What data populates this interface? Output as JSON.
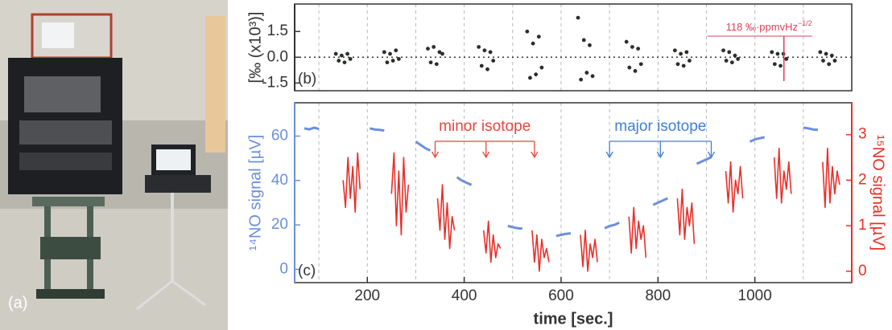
{
  "panel_a": {
    "label": "(a)"
  },
  "chart_data": [
    {
      "type": "scatter",
      "panel_label": "(b)",
      "ylabel": "[‰ (x10³)]",
      "xlim": [
        50,
        1200
      ],
      "ylim": [
        -1.95,
        3.1
      ],
      "yticks": [
        1.5,
        {
          "value": 0,
          "label": "0.0"
        },
        -1.5
      ],
      "x_grid": [
        100,
        200,
        300,
        400,
        500,
        600,
        700,
        800,
        900,
        1000,
        1100
      ],
      "zero_line": true,
      "annotation": {
        "text": "118 ‰·ppmvHz",
        "superscript": "−1/2",
        "x": 1060,
        "color": "#e0405a"
      },
      "x": [
        135,
        141,
        147,
        153,
        159,
        165,
        235,
        241,
        247,
        253,
        259,
        265,
        325,
        331,
        337,
        343,
        349,
        355,
        430,
        436,
        442,
        448,
        454,
        460,
        530,
        536,
        542,
        548,
        554,
        560,
        635,
        641,
        647,
        653,
        659,
        665,
        735,
        741,
        747,
        753,
        759,
        765,
        835,
        841,
        847,
        853,
        859,
        865,
        935,
        941,
        947,
        953,
        959,
        965,
        1035,
        1041,
        1047,
        1053,
        1059,
        1065,
        1135,
        1141,
        1147,
        1153,
        1159,
        1165
      ],
      "series": [
        {
          "color": "#2b2f2a",
          "values": [
            0.2,
            -0.2,
            0.1,
            -0.3,
            0.2,
            -0.1,
            0.3,
            -0.3,
            0.2,
            -0.2,
            0.4,
            -0.1,
            0.5,
            -0.3,
            0.6,
            -0.4,
            0.3,
            0.2,
            0.6,
            -0.5,
            0.4,
            -0.7,
            0.3,
            -0.2,
            1.5,
            -1.2,
            0.8,
            -1.0,
            1.2,
            -0.6,
            2.3,
            -1.3,
            1.0,
            -0.9,
            0.7,
            -1.1,
            0.9,
            -0.6,
            0.6,
            -0.8,
            0.5,
            -0.4,
            0.4,
            -0.4,
            0.2,
            -0.5,
            0.3,
            -0.2,
            0.4,
            -0.2,
            0.3,
            -0.3,
            0.1,
            -0.1,
            0.3,
            -0.4,
            0.2,
            -0.5,
            0.2,
            -0.1,
            0.3,
            -0.2,
            0.2,
            -0.4,
            0.1,
            -0.2
          ]
        }
      ]
    },
    {
      "type": "line",
      "panel_label": "(c)",
      "xlabel": "time [sec.]",
      "ylabel": "¹⁴NO signal [µV]",
      "y2label": "¹⁵NO signal [µV]",
      "xlim": [
        50,
        1200
      ],
      "ylim": [
        -6,
        75
      ],
      "y2lim": [
        -0.25,
        3.7
      ],
      "xticks": [
        200,
        400,
        600,
        800,
        1000
      ],
      "yticks": [
        0,
        20,
        40,
        60
      ],
      "y2ticks": [
        0,
        1,
        2,
        3
      ],
      "x_grid": [
        100,
        200,
        300,
        400,
        500,
        600,
        700,
        800,
        900,
        1000,
        1100
      ],
      "annotations": [
        {
          "text": "minor isotope",
          "color": "#e8453c",
          "x": [
            340,
            445,
            545
          ]
        },
        {
          "text": "major isotope",
          "color": "#3f7fd6",
          "x": [
            700,
            805,
            910
          ]
        }
      ],
      "x": [
        70,
        80,
        90,
        100,
        150,
        155,
        160,
        165,
        170,
        175,
        180,
        185,
        205,
        215,
        225,
        235,
        250,
        255,
        260,
        265,
        270,
        275,
        280,
        285,
        300,
        310,
        320,
        330,
        345,
        350,
        355,
        360,
        365,
        370,
        375,
        380,
        385,
        395,
        405,
        415,
        440,
        445,
        450,
        455,
        460,
        465,
        470,
        475,
        490,
        500,
        510,
        520,
        540,
        545,
        550,
        555,
        560,
        565,
        570,
        575,
        590,
        600,
        610,
        620,
        640,
        645,
        650,
        655,
        660,
        665,
        670,
        675,
        690,
        700,
        710,
        720,
        740,
        745,
        750,
        755,
        760,
        765,
        770,
        775,
        790,
        800,
        810,
        820,
        840,
        845,
        850,
        855,
        860,
        865,
        870,
        875,
        880,
        890,
        900,
        910,
        940,
        945,
        950,
        955,
        960,
        965,
        970,
        975,
        990,
        1000,
        1010,
        1020,
        1040,
        1045,
        1050,
        1055,
        1060,
        1065,
        1070,
        1075,
        1100,
        1110,
        1120,
        1130,
        1140,
        1145,
        1150,
        1155,
        1160,
        1165,
        1170,
        1175
      ],
      "series": [
        {
          "color": "#6b8fdc",
          "values": [
            63.5,
            63,
            63.8,
            63.2,
            null,
            null,
            null,
            null,
            null,
            null,
            null,
            null,
            63.5,
            63,
            62.8,
            62.5,
            null,
            null,
            null,
            null,
            null,
            null,
            null,
            null,
            57.5,
            56,
            54.5,
            53.5,
            null,
            null,
            null,
            null,
            null,
            null,
            null,
            null,
            41.5,
            40,
            39,
            38,
            null,
            null,
            null,
            null,
            null,
            null,
            null,
            null,
            19.5,
            19,
            18.5,
            18.3,
            null,
            null,
            null,
            null,
            null,
            null,
            null,
            null,
            15,
            15.5,
            16,
            16.2,
            null,
            null,
            null,
            null,
            null,
            null,
            null,
            null,
            18.5,
            19.5,
            20,
            21,
            null,
            null,
            null,
            null,
            null,
            null,
            null,
            null,
            29,
            30,
            31,
            32,
            null,
            null,
            null,
            null,
            null,
            null,
            null,
            null,
            47.5,
            48.5,
            49.5,
            50.5,
            null,
            null,
            null,
            null,
            null,
            null,
            null,
            null,
            57.5,
            58.5,
            59,
            59.5,
            null,
            null,
            null,
            null,
            null,
            null,
            null,
            null,
            63.8,
            63.5,
            63,
            62.8,
            null,
            null,
            null,
            null,
            null,
            null,
            null,
            null
          ]
        },
        {
          "color": "#e8302a",
          "axis": "y2",
          "values": [
            null,
            null,
            null,
            null,
            2.0,
            1.4,
            2.5,
            1.6,
            2.3,
            1.3,
            2.6,
            1.8,
            null,
            null,
            null,
            null,
            1.7,
            2.6,
            1.0,
            2.2,
            0.8,
            2.5,
            1.3,
            1.9,
            null,
            null,
            null,
            null,
            1.6,
            0.9,
            1.9,
            0.7,
            1.5,
            0.5,
            1.2,
            0.9,
            null,
            null,
            null,
            null,
            0.9,
            0.4,
            1.1,
            0.2,
            0.8,
            0.3,
            0.6,
            0.5,
            null,
            null,
            null,
            null,
            0.9,
            0.2,
            0.8,
            0,
            0.7,
            0.3,
            0.5,
            0.2,
            null,
            null,
            null,
            null,
            0.8,
            0.1,
            0.9,
            0,
            0.6,
            0.3,
            0.7,
            0.2,
            null,
            null,
            null,
            null,
            1.2,
            0.4,
            1.4,
            0.5,
            1.1,
            0.7,
            1.0,
            0.3,
            null,
            null,
            null,
            null,
            1.6,
            0.8,
            1.8,
            0.7,
            1.4,
            1.0,
            1.5,
            0.6,
            null,
            null,
            null,
            null,
            2.2,
            1.5,
            2.4,
            1.3,
            2.0,
            1.7,
            2.3,
            1.6,
            null,
            null,
            null,
            null,
            2.5,
            1.6,
            2.7,
            1.5,
            2.2,
            1.8,
            2.4,
            1.7,
            null,
            null,
            null,
            null,
            2.4,
            1.4,
            2.7,
            1.5,
            2.3,
            1.7,
            2.2,
            1.9
          ]
        }
      ]
    }
  ]
}
